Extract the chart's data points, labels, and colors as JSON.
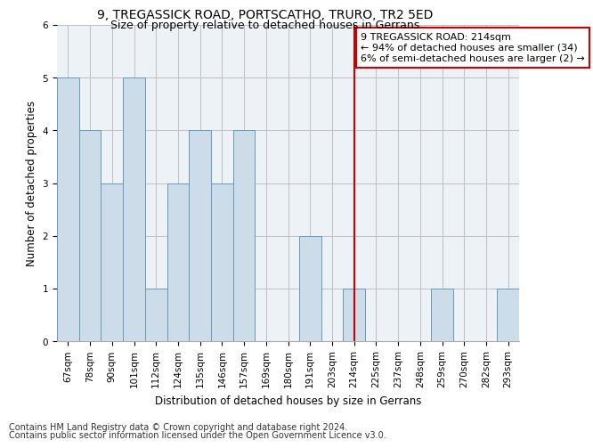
{
  "title_line1": "9, TREGASSICK ROAD, PORTSCATHO, TRURO, TR2 5ED",
  "title_line2": "Size of property relative to detached houses in Gerrans",
  "xlabel": "Distribution of detached houses by size in Gerrans",
  "ylabel": "Number of detached properties",
  "categories": [
    "67sqm",
    "78sqm",
    "90sqm",
    "101sqm",
    "112sqm",
    "124sqm",
    "135sqm",
    "146sqm",
    "157sqm",
    "169sqm",
    "180sqm",
    "191sqm",
    "203sqm",
    "214sqm",
    "225sqm",
    "237sqm",
    "248sqm",
    "259sqm",
    "270sqm",
    "282sqm",
    "293sqm"
  ],
  "values": [
    5,
    4,
    3,
    5,
    1,
    3,
    4,
    3,
    4,
    0,
    0,
    2,
    0,
    1,
    0,
    0,
    0,
    1,
    0,
    0,
    1
  ],
  "bar_color": "#ccdce8",
  "bar_edge_color": "#6699bb",
  "vline_x": 13,
  "vline_color": "#cc0000",
  "annotation_box_text": "9 TREGASSICK ROAD: 214sqm\n← 94% of detached houses are smaller (34)\n6% of semi-detached houses are larger (2) →",
  "annotation_box_color": "#cc0000",
  "ylim": [
    0,
    6
  ],
  "yticks": [
    0,
    1,
    2,
    3,
    4,
    5,
    6
  ],
  "footer_line1": "Contains HM Land Registry data © Crown copyright and database right 2024.",
  "footer_line2": "Contains public sector information licensed under the Open Government Licence v3.0.",
  "background_color": "#edf2f7",
  "grid_color": "#c0c0c0",
  "title_fontsize": 10,
  "subtitle_fontsize": 9,
  "axis_label_fontsize": 8.5,
  "tick_fontsize": 7.5,
  "annotation_fontsize": 8,
  "footer_fontsize": 7
}
